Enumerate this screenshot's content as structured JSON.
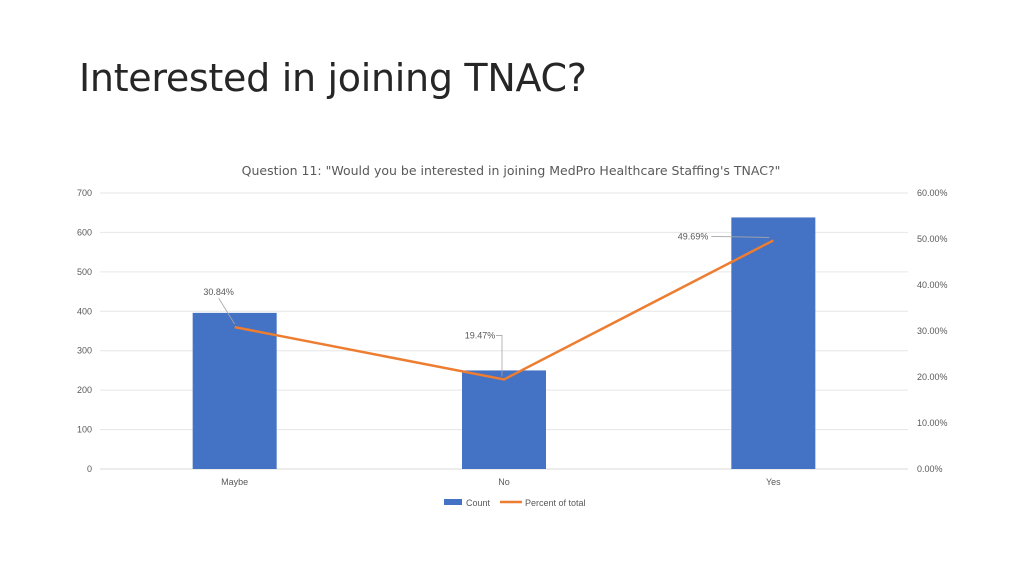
{
  "slide": {
    "title": "Interested in joining TNAC?"
  },
  "chart_data": {
    "type": "bar",
    "title": "Question 11: \"Would you be interested in joining MedPro Healthcare Staffing's TNAC?\"",
    "categories": [
      "Maybe",
      "No",
      "Yes"
    ],
    "series": [
      {
        "name": "Count",
        "type": "bar",
        "axis": "left",
        "color": "#4472C4",
        "values": [
          396,
          250,
          638
        ]
      },
      {
        "name": "Percent of total",
        "type": "line",
        "axis": "right",
        "color": "#ED7D31",
        "values": [
          30.84,
          19.47,
          49.69
        ]
      }
    ],
    "y_left": {
      "ylim": [
        0,
        700
      ],
      "ticks": [
        "0",
        "100",
        "200",
        "300",
        "400",
        "500",
        "600",
        "700"
      ]
    },
    "y_right": {
      "ylim": [
        0,
        60
      ],
      "ticks": [
        "0.00%",
        "10.00%",
        "20.00%",
        "30.00%",
        "40.00%",
        "50.00%",
        "60.00%"
      ]
    },
    "data_labels": [
      "30.84%",
      "19.47%",
      "49.69%"
    ],
    "grid": true,
    "legend_position": "bottom"
  }
}
